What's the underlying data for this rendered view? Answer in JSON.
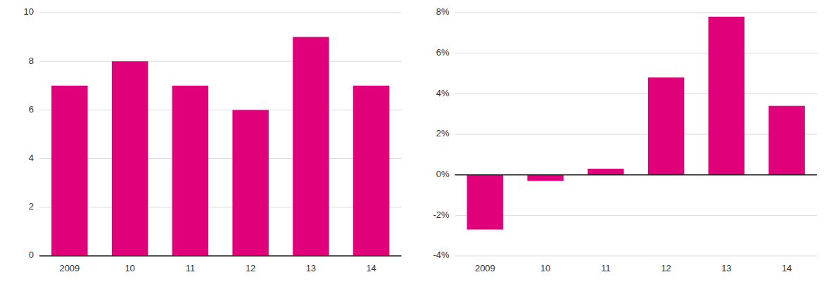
{
  "chart_data": [
    {
      "type": "bar",
      "categories": [
        "2009",
        "10",
        "11",
        "12",
        "13",
        "14"
      ],
      "values": [
        7,
        8,
        7,
        6,
        9,
        7
      ],
      "color": "#E0007A",
      "ylim": [
        0,
        10
      ],
      "yticks": [
        0,
        2,
        4,
        6,
        8,
        10
      ],
      "grid": true
    },
    {
      "type": "bar",
      "categories": [
        "2009",
        "10",
        "11",
        "12",
        "13",
        "14"
      ],
      "values": [
        -0.027,
        -0.003,
        0.003,
        0.048,
        0.078,
        0.034
      ],
      "color": "#E0007A",
      "ylim": [
        -0.04,
        0.08
      ],
      "yticks": [
        {
          "value": -0.04,
          "label": "-4%"
        },
        {
          "value": -0.02,
          "label": "-2%"
        },
        {
          "value": 0.0,
          "label": "0%"
        },
        {
          "value": 0.02,
          "label": "2%"
        },
        {
          "value": 0.04,
          "label": "4%"
        },
        {
          "value": 0.06,
          "label": "6%"
        },
        {
          "value": 0.08,
          "label": "8%"
        }
      ],
      "grid": true
    }
  ]
}
